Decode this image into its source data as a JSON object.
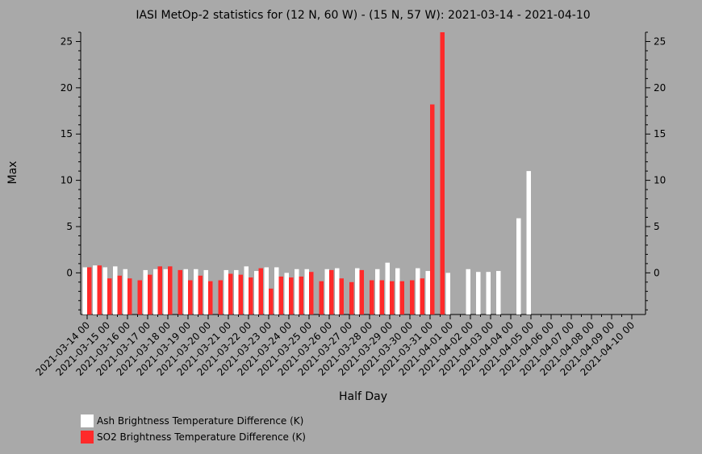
{
  "chart_data": {
    "type": "bar",
    "title": "IASI MetOp-2 statistics for (12 N, 60 W) - (15 N, 57 W): 2021-03-14 - 2021-04-10",
    "xlabel": "Half Day",
    "ylabel": "Max",
    "ylim": [
      -4.5,
      26
    ],
    "yticks": [
      0,
      5,
      10,
      15,
      20,
      25
    ],
    "xtick_labels": [
      "2021-03-14 00",
      "2021-03-15 00",
      "2021-03-16 00",
      "2021-03-17 00",
      "2021-03-18 00",
      "2021-03-19 00",
      "2021-03-20 00",
      "2021-03-21 00",
      "2021-03-22 00",
      "2021-03-23 00",
      "2021-03-24 00",
      "2021-03-25 00",
      "2021-03-26 00",
      "2021-03-27 00",
      "2021-03-28 00",
      "2021-03-29 00",
      "2021-03-30 00",
      "2021-03-31 00",
      "2021-04-01 00",
      "2021-04-02 00",
      "2021-04-03 00",
      "2021-04-04 00",
      "2021-04-05 00",
      "2021-04-06 00",
      "2021-04-07 00",
      "2021-04-08 00",
      "2021-04-09 00",
      "2021-04-10 00"
    ],
    "categories": [
      "2021-03-14 00",
      "2021-03-14 12",
      "2021-03-15 00",
      "2021-03-15 12",
      "2021-03-16 00",
      "2021-03-16 12",
      "2021-03-17 00",
      "2021-03-17 12",
      "2021-03-18 00",
      "2021-03-18 12",
      "2021-03-19 00",
      "2021-03-19 12",
      "2021-03-20 00",
      "2021-03-20 12",
      "2021-03-21 00",
      "2021-03-21 12",
      "2021-03-22 00",
      "2021-03-22 12",
      "2021-03-23 00",
      "2021-03-23 12",
      "2021-03-24 00",
      "2021-03-24 12",
      "2021-03-25 00",
      "2021-03-25 12",
      "2021-03-26 00",
      "2021-03-26 12",
      "2021-03-27 00",
      "2021-03-27 12",
      "2021-03-28 00",
      "2021-03-28 12",
      "2021-03-29 00",
      "2021-03-29 12",
      "2021-03-30 00",
      "2021-03-30 12",
      "2021-03-31 00",
      "2021-03-31 12",
      "2021-04-01 00",
      "2021-04-01 12",
      "2021-04-02 00",
      "2021-04-02 12",
      "2021-04-03 00",
      "2021-04-03 12",
      "2021-04-04 00",
      "2021-04-04 12",
      "2021-04-05 00",
      "2021-04-05 12",
      "2021-04-06 00",
      "2021-04-06 12",
      "2021-04-07 00",
      "2021-04-07 12",
      "2021-04-08 00",
      "2021-04-08 12",
      "2021-04-09 00",
      "2021-04-09 12",
      "2021-04-10 00"
    ],
    "series": [
      {
        "name": "Ash Brightness Temperature Difference (K)",
        "color": "#ffffff",
        "values": [
          0.6,
          0.8,
          0.6,
          0.7,
          0.4,
          null,
          0.3,
          0.4,
          0.4,
          null,
          0.4,
          0.4,
          0.3,
          null,
          0.3,
          0.3,
          0.7,
          0.2,
          0.6,
          0.6,
          0.0,
          0.4,
          0.4,
          null,
          0.4,
          0.5,
          null,
          0.5,
          null,
          0.4,
          1.1,
          0.5,
          null,
          0.5,
          0.2,
          null,
          0.0,
          null,
          0.4,
          0.1,
          0.1,
          0.2,
          null,
          5.9,
          11.0,
          null,
          null,
          null,
          null,
          null,
          null,
          null,
          null,
          null,
          null
        ]
      },
      {
        "name": "SO2 Brightness Temperature Difference (K)",
        "color": "#ff2a2a",
        "values": [
          0.6,
          0.8,
          -0.6,
          -0.3,
          -0.6,
          -0.8,
          -0.2,
          0.7,
          0.7,
          0.3,
          -0.8,
          -0.3,
          -0.9,
          -0.8,
          -0.1,
          -0.2,
          -0.5,
          0.5,
          -1.7,
          -0.4,
          -0.5,
          -0.4,
          0.1,
          -0.9,
          0.3,
          -0.6,
          -1.0,
          0.3,
          -0.8,
          -0.8,
          -0.9,
          -0.9,
          -0.8,
          -0.6,
          18.2,
          26.0,
          null,
          null,
          null,
          null,
          null,
          null,
          null,
          null,
          null,
          null,
          null,
          null,
          null,
          null,
          null,
          null,
          null,
          null,
          null
        ]
      }
    ],
    "legend": "bottom-left"
  }
}
